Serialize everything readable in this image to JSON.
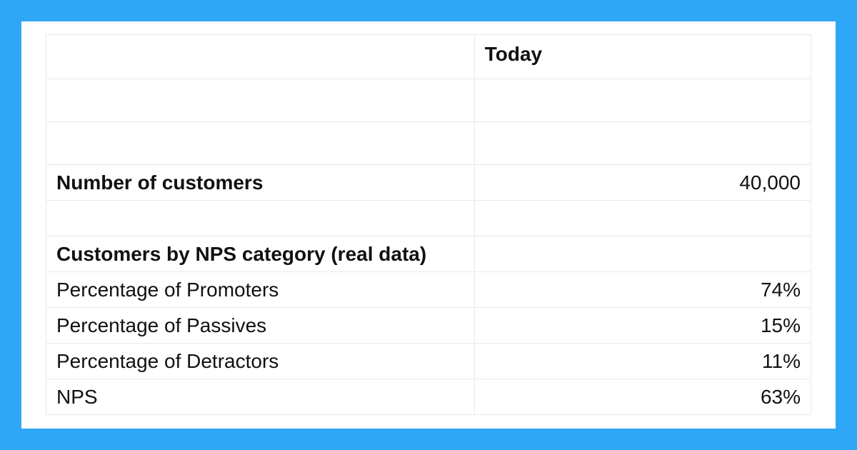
{
  "table": {
    "type": "table",
    "columns": [
      "label",
      "value"
    ],
    "column_widths_pct": [
      56,
      44
    ],
    "border_color": "#e9e9e9",
    "background_color": "#ffffff",
    "frame_color": "#2ea7f6",
    "text_color": "#111111",
    "font_size_pt": 21,
    "header": {
      "col1": "",
      "col2": "Today"
    },
    "rows": [
      {
        "label": "",
        "value": "",
        "bold": false,
        "kind": "spacer"
      },
      {
        "label": "",
        "value": "",
        "bold": false,
        "kind": "spacer"
      },
      {
        "label": "Number of customers",
        "value": "40,000",
        "bold": true,
        "kind": "data"
      },
      {
        "label": "",
        "value": "",
        "bold": false,
        "kind": "spacer"
      },
      {
        "label": "Customers by NPS category (real data)",
        "value": "",
        "bold": true,
        "kind": "section"
      },
      {
        "label": "Percentage of Promoters",
        "value": "74%",
        "bold": false,
        "kind": "data"
      },
      {
        "label": "Percentage of Passives",
        "value": "15%",
        "bold": false,
        "kind": "data"
      },
      {
        "label": "Percentage of Detractors",
        "value": "11%",
        "bold": false,
        "kind": "data"
      },
      {
        "label": "NPS",
        "value": "63%",
        "bold": false,
        "kind": "data"
      }
    ]
  }
}
